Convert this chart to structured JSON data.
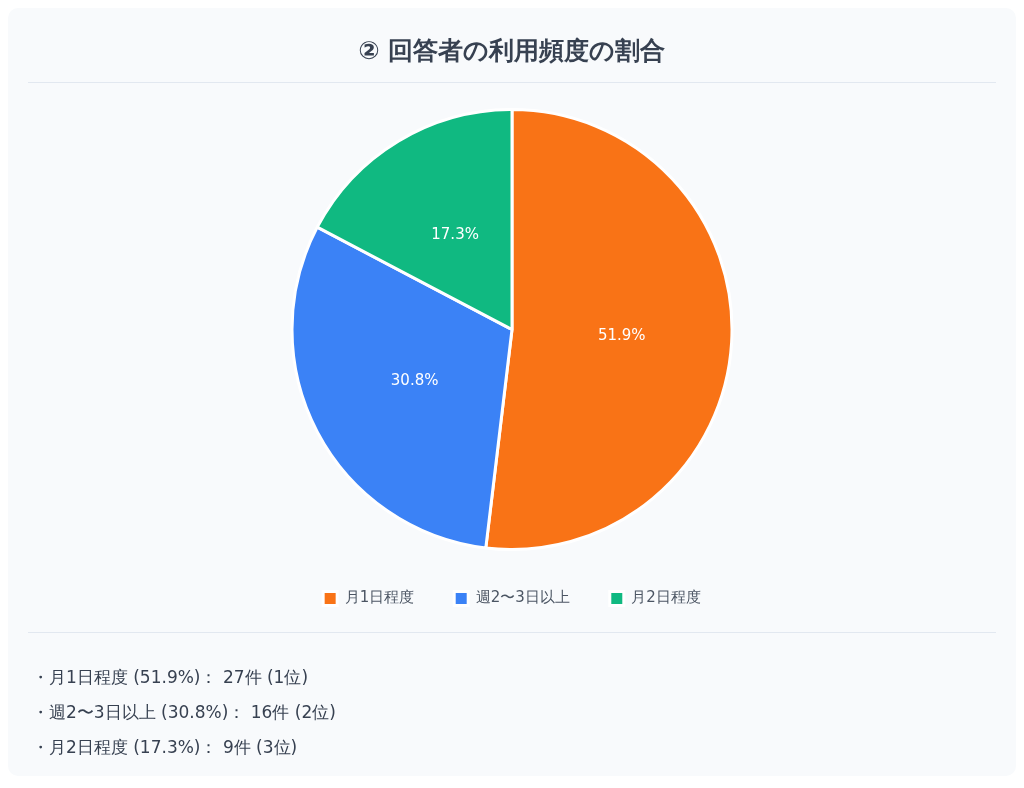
{
  "chart_data": {
    "type": "pie",
    "title": "② 回答者の利用頻度の割合",
    "categories": [
      "月1日程度",
      "週2〜3日以上",
      "月2日程度"
    ],
    "values": [
      51.9,
      30.8,
      17.3
    ],
    "value_labels": [
      "51.9%",
      "30.8%",
      "17.3%"
    ],
    "colors": [
      "#f97316",
      "#3b82f6",
      "#10b981"
    ],
    "legend": "bottom",
    "annotations": [
      "・月1日程度 (51.9%)： 27件 (1位)",
      "・週2〜3日以上 (30.8%)： 16件 (2位)",
      "・月2日程度 (17.3%)： 9件 (3位)"
    ]
  }
}
